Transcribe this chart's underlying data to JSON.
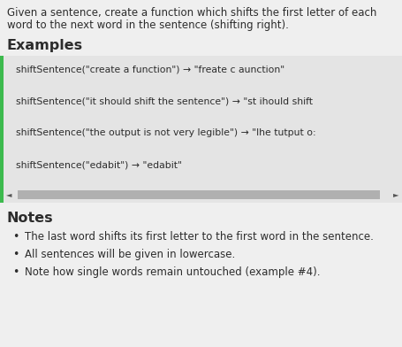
{
  "bg_color": "#efefef",
  "intro_text_line1": "Given a sentence, create a function which shifts the first letter of each",
  "intro_text_line2": "word to the next word in the sentence (shifting right).",
  "section_examples": "Examples",
  "code_bg": "#e4e4e4",
  "code_border_color": "#3dba4e",
  "code_lines": [
    "shiftSentence(\"create a function\") → \"freate c aunction\"",
    "shiftSentence(\"it should shift the sentence\") → \"st ihould shift",
    "shiftSentence(\"the output is not very legible\") → \"lhe tutput o:",
    "shiftSentence(\"edabit\") → \"edabit\""
  ],
  "scroll_bar_color": "#b0b0b0",
  "scroll_arrow_color": "#555555",
  "section_notes": "Notes",
  "notes": [
    "The last word shifts its first letter to the first word in the sentence.",
    "All sentences will be given in lowercase.",
    "Note how single words remain untouched (example #4)."
  ],
  "intro_font_size": 8.5,
  "section_font_size": 11.5,
  "code_font_size": 7.8,
  "notes_font_size": 8.5,
  "text_color": "#2c2c2c"
}
